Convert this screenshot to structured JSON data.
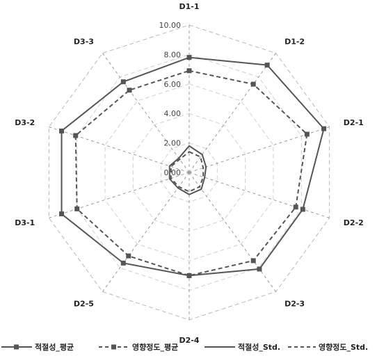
{
  "chart_data": {
    "type": "radar",
    "axes": [
      "D1-1",
      "D1-2",
      "D2-1",
      "D2-2",
      "D2-3",
      "D2-4",
      "D2-5",
      "D3-1",
      "D3-2",
      "D3-3"
    ],
    "rlim": [
      0,
      10
    ],
    "ticks": [
      "0.00",
      "2.00",
      "4.00",
      "6.00",
      "8.00",
      "10.00"
    ],
    "grid": true,
    "legend_position": "bottom",
    "series": [
      {
        "name": "적절성_평균",
        "color": "#555555",
        "line": "solid",
        "marker": "square",
        "values": [
          7.8,
          9.0,
          9.6,
          8.1,
          8.1,
          7.0,
          7.6,
          9.1,
          9.1,
          7.6
        ]
      },
      {
        "name": "영향정도_평균",
        "color": "#555555",
        "line": "dashed",
        "marker": "square",
        "values": [
          6.9,
          7.4,
          8.4,
          7.6,
          7.4,
          7.0,
          7.0,
          8.0,
          8.1,
          6.9
        ]
      },
      {
        "name": "적절성_Std.",
        "color": "#555555",
        "line": "solid",
        "marker": "none",
        "values": [
          1.8,
          1.5,
          1.2,
          1.1,
          1.4,
          1.5,
          1.3,
          1.4,
          1.4,
          1.2
        ]
      },
      {
        "name": "영향정도_Std.",
        "color": "#555555",
        "line": "dashed",
        "marker": "none",
        "values": [
          1.4,
          1.3,
          1.0,
          1.0,
          1.2,
          1.3,
          1.2,
          1.3,
          1.3,
          1.1
        ]
      }
    ]
  }
}
